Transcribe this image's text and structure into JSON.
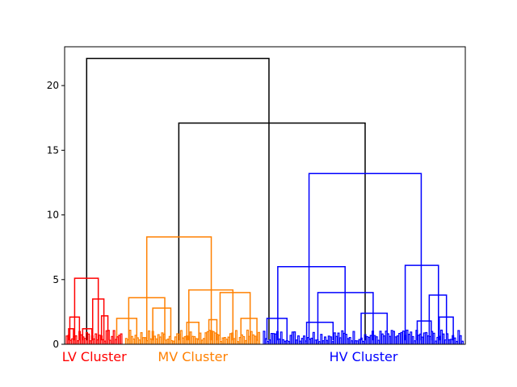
{
  "chart_data": {
    "type": "dendrogram",
    "title": "",
    "xlabel": "",
    "ylabel": "",
    "ylim": [
      0,
      23
    ],
    "y_ticks": [
      0,
      5,
      10,
      15,
      20
    ],
    "y_tick_labels": [
      "0",
      "5",
      "10",
      "15",
      "20"
    ],
    "x_ticks": [],
    "grid": false,
    "legend": "none",
    "colors": {
      "link_above_threshold": "#000000",
      "LV": "#ff0000",
      "MV": "#ff8000",
      "HV": "#0000ff"
    },
    "clusters": [
      {
        "name": "LV Cluster",
        "color": "#ff0000",
        "x_start": 0,
        "x_end": 14.8
      },
      {
        "name": "MV Cluster",
        "color": "#ff8000",
        "x_start": 14.8,
        "x_end": 49.2
      },
      {
        "name": "HV Cluster",
        "color": "#0000ff",
        "x_start": 49.2,
        "x_end": 100
      }
    ],
    "merges": [
      {
        "x_left": 5.5,
        "x_right": 51,
        "height": 22.1,
        "cluster": "above"
      },
      {
        "x_left": 28.5,
        "x_right": 75,
        "height": 17.1,
        "cluster": "above"
      },
      {
        "x_left": 20.5,
        "x_right": 36.6,
        "height": 8.3,
        "cluster": "MV"
      },
      {
        "x_left": 61,
        "x_right": 89,
        "height": 13.2,
        "cluster": "HV"
      },
      {
        "x_left": 53.2,
        "x_right": 70,
        "height": 6.0,
        "cluster": "HV"
      },
      {
        "x_left": 85,
        "x_right": 93.3,
        "height": 6.1,
        "cluster": "HV"
      },
      {
        "x_left": 2.5,
        "x_right": 8.4,
        "height": 5.1,
        "cluster": "LV"
      },
      {
        "x_left": 16,
        "x_right": 25,
        "height": 3.6,
        "cluster": "MV"
      },
      {
        "x_left": 31,
        "x_right": 42,
        "height": 4.2,
        "cluster": "MV"
      },
      {
        "x_left": 63.2,
        "x_right": 77,
        "height": 4.0,
        "cluster": "HV"
      },
      {
        "x_left": 91,
        "x_right": 95.3,
        "height": 3.8,
        "cluster": "HV"
      },
      {
        "x_left": 1.3,
        "x_right": 3.7,
        "height": 2.1,
        "cluster": "LV"
      },
      {
        "x_left": 7,
        "x_right": 9.8,
        "height": 3.5,
        "cluster": "LV"
      },
      {
        "x_left": 38.8,
        "x_right": 46.3,
        "height": 4.0,
        "cluster": "MV"
      },
      {
        "x_left": 22,
        "x_right": 26.5,
        "height": 2.8,
        "cluster": "MV"
      },
      {
        "x_left": 74,
        "x_right": 80.5,
        "height": 2.4,
        "cluster": "HV"
      },
      {
        "x_left": 50.5,
        "x_right": 55.5,
        "height": 2.0,
        "cluster": "HV"
      },
      {
        "x_left": 60.4,
        "x_right": 67,
        "height": 1.7,
        "cluster": "HV"
      },
      {
        "x_left": 88,
        "x_right": 91.5,
        "height": 1.8,
        "cluster": "HV"
      },
      {
        "x_left": 93.5,
        "x_right": 97,
        "height": 2.1,
        "cluster": "HV"
      },
      {
        "x_left": 13,
        "x_right": 18,
        "height": 2.0,
        "cluster": "MV"
      },
      {
        "x_left": 30.5,
        "x_right": 33.5,
        "height": 1.7,
        "cluster": "MV"
      },
      {
        "x_left": 36,
        "x_right": 38,
        "height": 1.9,
        "cluster": "MV"
      },
      {
        "x_left": 44,
        "x_right": 48,
        "height": 2.0,
        "cluster": "MV"
      },
      {
        "x_left": 1,
        "x_right": 2.2,
        "height": 1.2,
        "cluster": "LV"
      },
      {
        "x_left": 9.2,
        "x_right": 10.8,
        "height": 2.2,
        "cluster": "LV"
      },
      {
        "x_left": 4.5,
        "x_right": 6.8,
        "height": 1.2,
        "cluster": "LV"
      }
    ]
  }
}
